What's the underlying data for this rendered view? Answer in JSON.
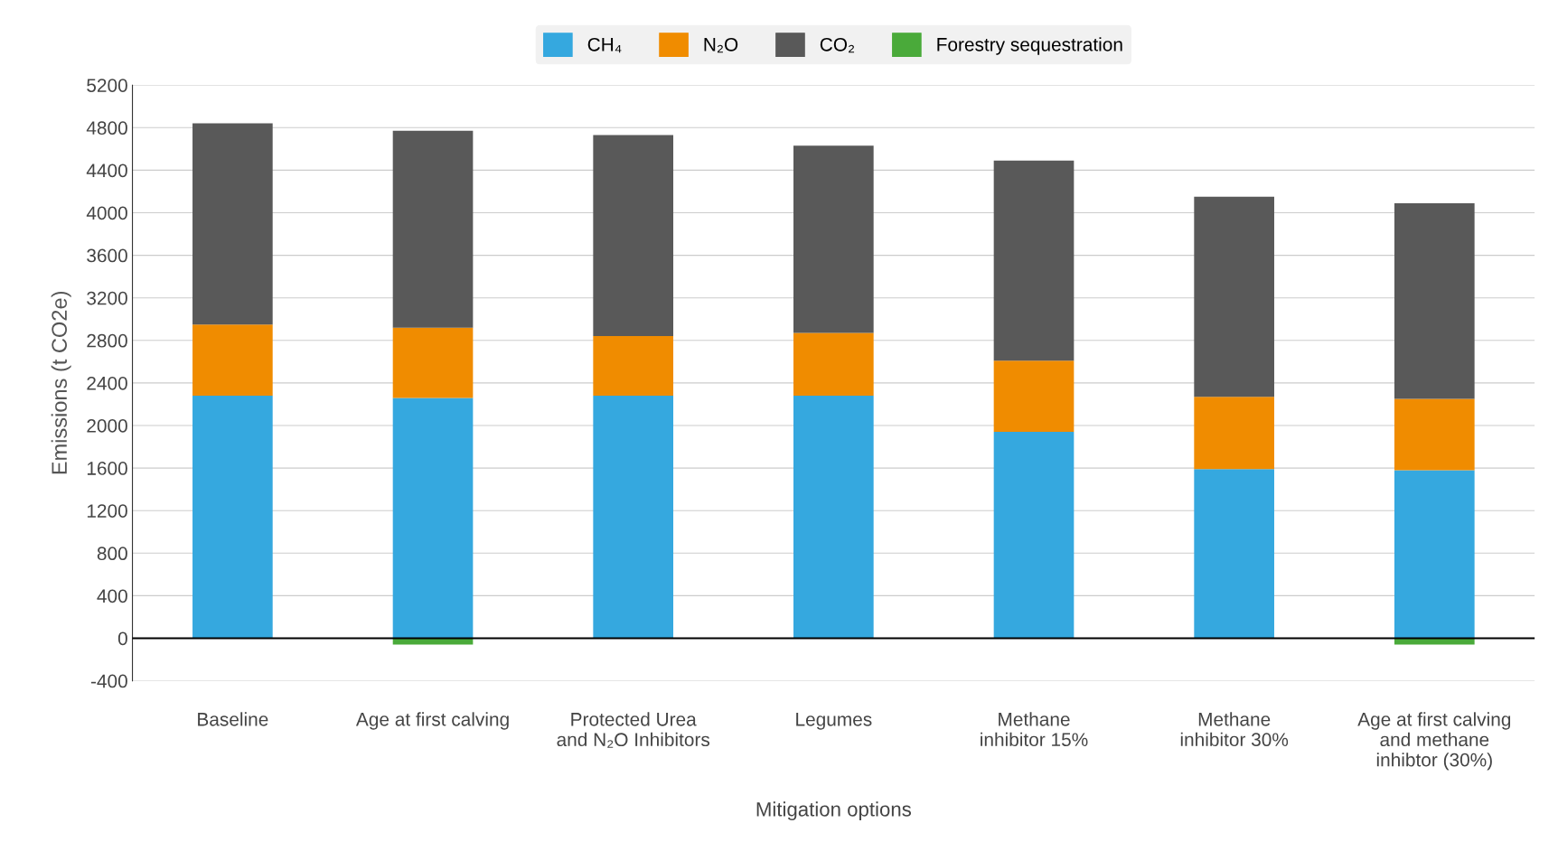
{
  "chart_data": {
    "type": "bar",
    "stacked": true,
    "ylabel": "Emissions (t CO2e)",
    "xlabel": "Mitigation options",
    "categories": [
      "Baseline",
      "Age at first calving",
      "Protected Urea\nand N₂O Inhibitors",
      "Legumes",
      "Methane\ninhibitor 15%",
      "Methane\ninhibitor 30%",
      "Age at first calving\nand methane\ninhibtor (30%)"
    ],
    "series": [
      {
        "name": "CH₄",
        "color": "#35a8df",
        "values": [
          2280,
          2260,
          2280,
          2280,
          1940,
          1590,
          1580
        ]
      },
      {
        "name": "N₂O",
        "color": "#f08c00",
        "values": [
          670,
          660,
          560,
          590,
          670,
          680,
          670
        ]
      },
      {
        "name": "CO₂",
        "color": "#595959",
        "values": [
          1890,
          1850,
          1890,
          1760,
          1880,
          1880,
          1840
        ]
      },
      {
        "name": "Forestry sequestration",
        "color": "#4aaa3a",
        "values": [
          0,
          -60,
          0,
          0,
          0,
          0,
          -60
        ]
      }
    ],
    "ylim": [
      -400,
      5200
    ],
    "yticks": [
      -400,
      0,
      400,
      800,
      1200,
      1600,
      2000,
      2400,
      2800,
      3200,
      3600,
      4000,
      4400,
      4800,
      5200
    ],
    "grid": "y",
    "legend": "top"
  }
}
